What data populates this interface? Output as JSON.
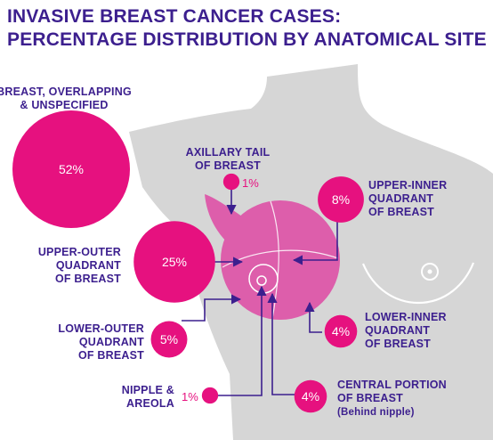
{
  "title": {
    "line1": "INVASIVE BREAST CANCER CASES:",
    "line2": "PERCENTAGE DISTRIBUTION BY ANATOMICAL SITE"
  },
  "colors": {
    "title": "#3c1f8e",
    "bubble": "#e6117f",
    "breast": "#dd5eab",
    "body": "#d6d6d6",
    "arrow": "#3c1f8e"
  },
  "chart_data": {
    "type": "bubble",
    "title": "INVASIVE BREAST CANCER CASES: PERCENTAGE DISTRIBUTION BY ANATOMICAL SITE",
    "unit": "%",
    "categories": [
      "BREAST, OVERLAPPING & UNSPECIFIED",
      "UPPER-OUTER QUADRANT OF BREAST",
      "UPPER-INNER QUADRANT OF BREAST",
      "LOWER-OUTER QUADRANT OF BREAST",
      "LOWER-INNER QUADRANT OF BREAST",
      "CENTRAL PORTION OF BREAST (Behind nipple)",
      "AXILLARY TAIL OF BREAST",
      "NIPPLE & AREOLA"
    ],
    "values": [
      52,
      25,
      8,
      5,
      4,
      4,
      1,
      1
    ],
    "sites": [
      {
        "id": "overlapping",
        "label_lines": [
          "BREAST, OVERLAPPING",
          "& UNSPECIFIED"
        ],
        "value": 52,
        "display": "52%"
      },
      {
        "id": "upper-outer",
        "label_lines": [
          "UPPER-OUTER",
          "QUADRANT",
          "OF BREAST"
        ],
        "value": 25,
        "display": "25%"
      },
      {
        "id": "upper-inner",
        "label_lines": [
          "UPPER-INNER",
          "QUADRANT",
          "OF BREAST"
        ],
        "value": 8,
        "display": "8%"
      },
      {
        "id": "lower-outer",
        "label_lines": [
          "LOWER-OUTER",
          "QUADRANT",
          "OF BREAST"
        ],
        "value": 5,
        "display": "5%"
      },
      {
        "id": "lower-inner",
        "label_lines": [
          "LOWER-INNER",
          "QUADRANT",
          "OF BREAST"
        ],
        "value": 4,
        "display": "4%"
      },
      {
        "id": "central",
        "label_lines": [
          "CENTRAL PORTION",
          "OF BREAST",
          "(Behind nipple)"
        ],
        "value": 4,
        "display": "4%"
      },
      {
        "id": "axillary-tail",
        "label_lines": [
          "AXILLARY TAIL",
          "OF BREAST"
        ],
        "value": 1,
        "display": "1%"
      },
      {
        "id": "nipple-areola",
        "label_lines": [
          "NIPPLE &",
          "AREOLA"
        ],
        "value": 1,
        "display": "1%"
      }
    ]
  }
}
